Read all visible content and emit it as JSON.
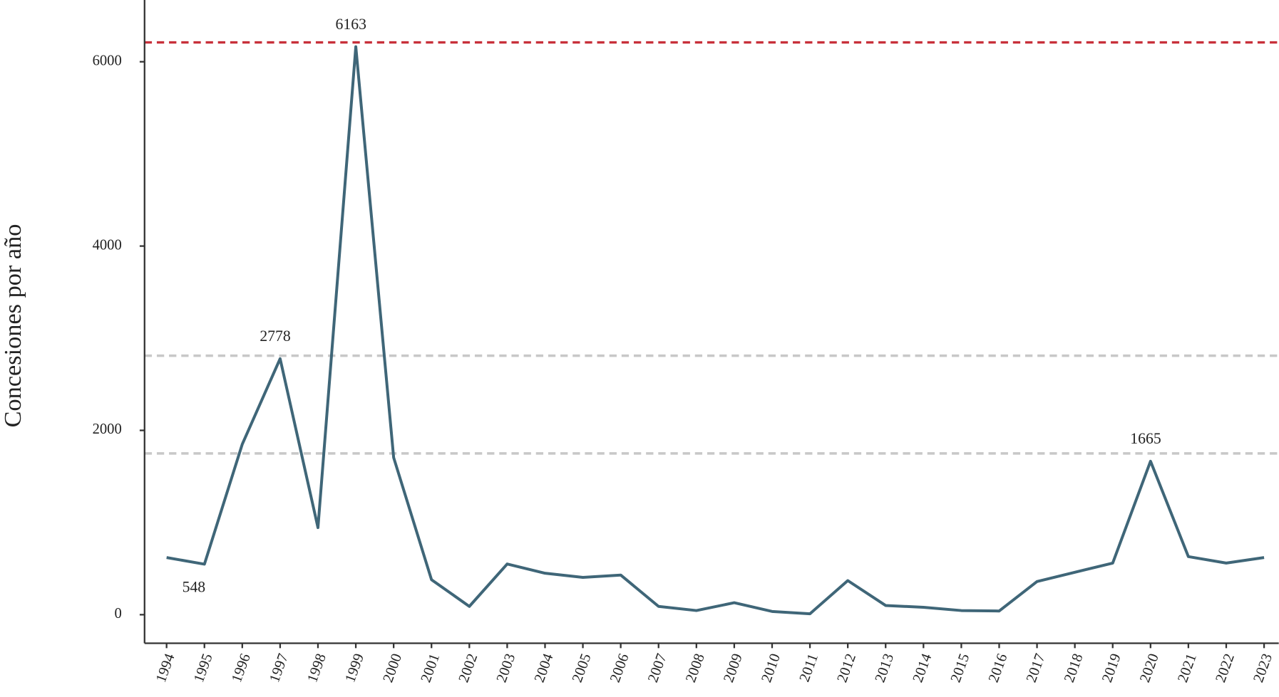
{
  "chart_data": {
    "type": "line",
    "y_label": "Concesiones por año",
    "categories": [
      "1994",
      "1995",
      "1996",
      "1997",
      "1998",
      "1999",
      "2000",
      "2001",
      "2002",
      "2003",
      "2004",
      "2005",
      "2006",
      "2007",
      "2008",
      "2009",
      "2010",
      "2011",
      "2012",
      "2013",
      "2014",
      "2015",
      "2016",
      "2017",
      "2018",
      "2019",
      "2020",
      "2021",
      "2022",
      "2023"
    ],
    "values": [
      620,
      548,
      1850,
      2778,
      945,
      6163,
      1705,
      380,
      90,
      550,
      450,
      405,
      430,
      90,
      45,
      130,
      35,
      10,
      370,
      100,
      80,
      45,
      40,
      360,
      460,
      560,
      1665,
      630,
      560,
      620
    ],
    "color": "#3f6678",
    "labeled_points": [
      1,
      3,
      5,
      26
    ],
    "reference_lines": [
      {
        "value": 6210,
        "color": "#c8303a"
      },
      {
        "value": 2810,
        "color": "#c8c8c8"
      },
      {
        "value": 1750,
        "color": "#c8c8c8"
      }
    ],
    "ylim": [
      -310,
      6670
    ],
    "yticks": [
      0,
      2000,
      4000,
      6000
    ]
  }
}
